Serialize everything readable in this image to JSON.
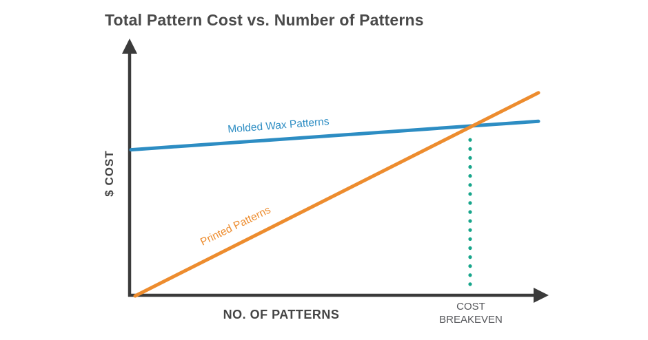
{
  "title": "Total Pattern Cost vs. Number of Patterns",
  "axis": {
    "y_label": "$ COST",
    "x_label": "NO. OF PATTERNS"
  },
  "annotation": {
    "breakeven_line1": "COST",
    "breakeven_line2": "BREAKEVEN"
  },
  "colors": {
    "axis": "#3b3b3b",
    "title_text": "#4a4a4a",
    "axis_label_text": "#454545",
    "breakeven_label_text": "#55565a",
    "molded_wax_blue": "#2d8dc3",
    "printed_orange": "#ed8c2e",
    "breakeven_teal": "#17a58b"
  },
  "chart_data": {
    "type": "line",
    "title": "Total Pattern Cost vs. Number of Patterns",
    "xlabel": "NO. OF PATTERNS",
    "ylabel": "$ COST",
    "axis_style": "conceptual arrowed axes, no ticks, no gridlines, no numeric scale",
    "x_range": [
      0,
      100
    ],
    "y_range": [
      0,
      100
    ],
    "series": [
      {
        "name": "Molded Wax Patterns",
        "color": "#2d8dc3",
        "points": [
          [
            0,
            59
          ],
          [
            98.5,
            70.5
          ]
        ],
        "description": "high starting (fixed) cost, shallow slope"
      },
      {
        "name": "Printed Patterns",
        "color": "#ed8c2e",
        "points": [
          [
            1,
            0
          ],
          [
            98.5,
            82
          ]
        ],
        "description": "starts at origin, steep slope"
      }
    ],
    "intersection": {
      "x": 82,
      "y": 69
    },
    "annotations": [
      {
        "label": "COST BREAKEVEN",
        "type": "vertical-dotted-line",
        "x": 82,
        "y_from": 2.5,
        "y_to": 63,
        "color": "#17a58b"
      }
    ],
    "legend": "inline labels placed along each line"
  }
}
